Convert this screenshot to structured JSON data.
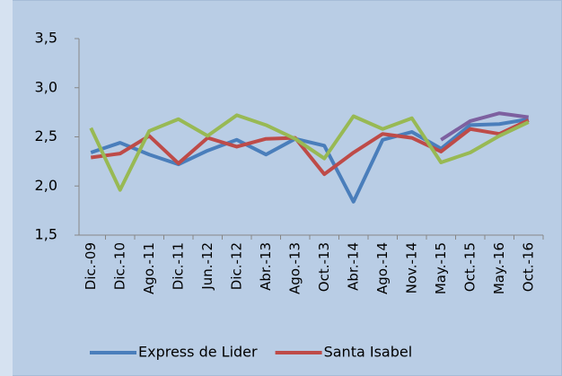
{
  "chart_data": {
    "type": "line",
    "categories": [
      "Dic.-09",
      "Dic.-10",
      "Ago.-11",
      "Dic.-11",
      "Jun.-12",
      "Dic.-12",
      "Abr.-13",
      "Ago.-13",
      "Oct.-13",
      "Abr.-14",
      "Ago.-14",
      "Nov.-14",
      "May.-15",
      "Oct.-15",
      "May.-16",
      "Oct.-16"
    ],
    "series": [
      {
        "name": "Express de Lider",
        "color": "#4a7ebb",
        "values": [
          2.34,
          2.44,
          2.32,
          2.22,
          2.36,
          2.47,
          2.32,
          2.48,
          2.41,
          1.84,
          2.47,
          2.55,
          2.38,
          2.62,
          2.63,
          2.68
        ]
      },
      {
        "name": "Santa Isabel",
        "color": "#be4b48",
        "values": [
          2.29,
          2.33,
          2.51,
          2.23,
          2.49,
          2.4,
          2.48,
          2.49,
          2.12,
          2.34,
          2.53,
          2.49,
          2.35,
          2.58,
          2.53,
          2.67
        ]
      },
      {
        "color": "#98b954",
        "values": [
          2.59,
          1.96,
          2.56,
          2.68,
          2.51,
          2.72,
          2.62,
          2.48,
          2.28,
          2.71,
          2.58,
          2.69,
          2.24,
          2.34,
          2.51,
          2.65
        ]
      },
      {
        "color": "#7d60a0",
        "values": [
          null,
          null,
          null,
          null,
          null,
          null,
          null,
          null,
          null,
          null,
          null,
          null,
          2.47,
          2.66,
          2.74,
          2.7
        ]
      }
    ],
    "ylim": [
      1.5,
      3.5
    ],
    "yticks": [
      {
        "value": 1.5,
        "label": "1,5"
      },
      {
        "value": 2.0,
        "label": "2,0"
      },
      {
        "value": 2.5,
        "label": "2,5"
      },
      {
        "value": 3.0,
        "label": "3,0"
      },
      {
        "value": 3.5,
        "label": "3,5"
      }
    ],
    "legend": "bottom"
  }
}
